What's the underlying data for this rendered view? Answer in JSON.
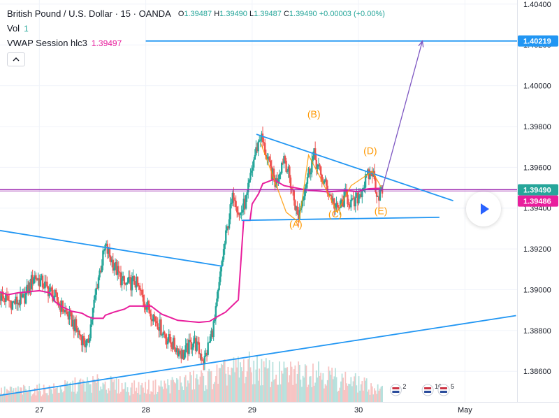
{
  "header": {
    "title": "British Pound / U.S. Dollar · 15 · OANDA",
    "ohlc": [
      {
        "k": "O",
        "v": "1.39487"
      },
      {
        "k": "H",
        "v": "1.39490"
      },
      {
        "k": "L",
        "v": "1.39487"
      },
      {
        "k": "C",
        "v": "1.39490"
      }
    ],
    "change": "+0.00003 (+0.00%)",
    "vol_label": "Vol",
    "vol_value": "1",
    "vwap_label": "VWAP Session hlc3",
    "vwap_value": "1.39497",
    "collapse_icon": "chevron-up-icon"
  },
  "colors": {
    "up": "#26a69a",
    "down": "#ef5350",
    "vwap": "#e91e9c",
    "trendline": "#2196f3",
    "pattern": "#ff9800",
    "pattern_arrow": "#7e57c2",
    "price_line": "#9c27b0",
    "blue_tag": "#2196f3"
  },
  "chart_data": {
    "type": "candlestick",
    "y_axis": {
      "range": [
        1.3845,
        1.4042
      ],
      "ticks": [
        "1.38600",
        "1.38800",
        "1.39000",
        "1.39200",
        "1.39400",
        "1.39600",
        "1.39800",
        "1.40000",
        "1.40200",
        "1.40400"
      ]
    },
    "x_axis": {
      "range": [
        26.63,
        31.49
      ],
      "ticks": [
        {
          "label": "27",
          "day": 27
        },
        {
          "label": "28",
          "day": 28
        },
        {
          "label": "29",
          "day": 29
        },
        {
          "label": "30",
          "day": 30
        },
        {
          "label": "May",
          "day": 31
        }
      ]
    },
    "price_labels": [
      {
        "text": "1.40219",
        "price": 1.40219
      },
      {
        "text": "1.39490",
        "price": 1.3949
      },
      {
        "text": "1.39486",
        "price": 1.39486
      }
    ],
    "target_line": {
      "price": 1.40219,
      "day_from": 28.0,
      "day_to": 31.49
    },
    "current_price_line": 1.3949,
    "price_path": [
      [
        26.63,
        1.3897
      ],
      [
        26.75,
        1.38935
      ],
      [
        26.85,
        1.3895
      ],
      [
        26.95,
        1.3907
      ],
      [
        27.05,
        1.3902
      ],
      [
        27.15,
        1.3896
      ],
      [
        27.3,
        1.3885
      ],
      [
        27.45,
        1.3872
      ],
      [
        27.55,
        1.3905
      ],
      [
        27.62,
        1.3921
      ],
      [
        27.7,
        1.3912
      ],
      [
        27.8,
        1.3902
      ],
      [
        27.9,
        1.3904
      ],
      [
        28.0,
        1.3893
      ],
      [
        28.1,
        1.3885
      ],
      [
        28.2,
        1.3876
      ],
      [
        28.35,
        1.3868
      ],
      [
        28.45,
        1.3875
      ],
      [
        28.55,
        1.3865
      ],
      [
        28.65,
        1.3885
      ],
      [
        28.72,
        1.3915
      ],
      [
        28.78,
        1.3935
      ],
      [
        28.83,
        1.3948
      ],
      [
        28.88,
        1.3936
      ],
      [
        28.95,
        1.3945
      ],
      [
        29.02,
        1.3965
      ],
      [
        29.08,
        1.3976
      ],
      [
        29.15,
        1.3962
      ],
      [
        29.22,
        1.3952
      ],
      [
        29.3,
        1.3966
      ],
      [
        29.38,
        1.3948
      ],
      [
        29.43,
        1.3935
      ],
      [
        29.5,
        1.3952
      ],
      [
        29.58,
        1.3966
      ],
      [
        29.65,
        1.3955
      ],
      [
        29.72,
        1.3948
      ],
      [
        29.8,
        1.39385
      ],
      [
        29.88,
        1.3946
      ],
      [
        29.95,
        1.3941
      ],
      [
        30.02,
        1.3948
      ],
      [
        30.08,
        1.3955
      ],
      [
        30.13,
        1.3958
      ],
      [
        30.18,
        1.3946
      ],
      [
        30.23,
        1.3949
      ]
    ],
    "vwap_path": [
      [
        26.63,
        1.3899
      ],
      [
        26.7,
        1.38975
      ],
      [
        26.8,
        1.38985
      ],
      [
        26.9,
        1.3899
      ],
      [
        27.0,
        1.38995
      ],
      [
        27.1,
        1.38985
      ],
      [
        27.15,
        1.3894
      ],
      [
        27.2,
        1.3892
      ],
      [
        27.3,
        1.38895
      ],
      [
        27.4,
        1.38885
      ],
      [
        27.45,
        1.3887
      ],
      [
        27.5,
        1.3886
      ],
      [
        27.55,
        1.3886
      ],
      [
        27.6,
        1.3886
      ],
      [
        27.62,
        1.38875
      ],
      [
        27.7,
        1.3889
      ],
      [
        27.8,
        1.38905
      ],
      [
        27.85,
        1.3892
      ],
      [
        27.95,
        1.3892
      ],
      [
        28.05,
        1.3892
      ],
      [
        28.1,
        1.389
      ],
      [
        28.15,
        1.3888
      ],
      [
        28.25,
        1.3886
      ],
      [
        28.3,
        1.3885
      ],
      [
        28.4,
        1.38845
      ],
      [
        28.5,
        1.3884
      ],
      [
        28.6,
        1.38845
      ],
      [
        28.68,
        1.3887
      ],
      [
        28.75,
        1.3889
      ],
      [
        28.83,
        1.3893
      ],
      [
        28.87,
        1.3895
      ],
      [
        28.92,
        1.3934
      ],
      [
        28.98,
        1.3934
      ],
      [
        29.0,
        1.3942
      ],
      [
        29.06,
        1.3947
      ],
      [
        29.1,
        1.3952
      ],
      [
        29.2,
        1.3954
      ],
      [
        29.3,
        1.3951
      ],
      [
        29.5,
        1.3949
      ],
      [
        29.7,
        1.3948
      ],
      [
        29.9,
        1.39485
      ],
      [
        30.0,
        1.3948
      ],
      [
        30.04,
        1.3949
      ],
      [
        30.1,
        1.39495
      ],
      [
        30.2,
        1.39497
      ]
    ],
    "volume_path": [
      [
        26.63,
        0.18
      ],
      [
        26.9,
        0.2
      ],
      [
        27.15,
        0.22
      ],
      [
        27.4,
        0.3
      ],
      [
        27.6,
        0.32
      ],
      [
        27.85,
        0.24
      ],
      [
        28.1,
        0.26
      ],
      [
        28.35,
        0.34
      ],
      [
        28.6,
        0.4
      ],
      [
        28.78,
        0.52
      ],
      [
        29.0,
        0.58
      ],
      [
        29.25,
        0.46
      ],
      [
        29.45,
        0.5
      ],
      [
        29.6,
        0.56
      ],
      [
        29.8,
        0.38
      ],
      [
        29.95,
        0.34
      ],
      [
        30.1,
        0.26
      ],
      [
        30.23,
        0.18
      ]
    ],
    "trendlines": [
      {
        "from": [
          26.63,
          1.3929
        ],
        "to": [
          28.72,
          1.39115
        ]
      },
      {
        "from": [
          26.63,
          1.38482
        ],
        "to": [
          31.48,
          1.38873
        ]
      },
      {
        "from": [
          29.04,
          1.39762
        ],
        "to": [
          30.89,
          1.39436
        ]
      },
      {
        "from": [
          28.9,
          1.3934
        ],
        "to": [
          30.76,
          1.39355
        ]
      }
    ],
    "pattern_path": [
      [
        29.08,
        1.3972
      ],
      [
        29.32,
        1.3938
      ],
      [
        29.44,
        1.3933
      ],
      [
        29.53,
        1.3966
      ],
      [
        29.63,
        1.3956
      ],
      [
        29.8,
        1.3938
      ],
      [
        29.93,
        1.3951
      ],
      [
        30.13,
        1.3958
      ],
      [
        30.21,
        1.39505
      ]
    ],
    "pattern_arrow": {
      "from": [
        30.22,
        1.3949
      ],
      "to": [
        30.6,
        1.40219
      ]
    },
    "wave_labels": [
      {
        "text": "(A)",
        "day": 29.41,
        "price": 1.39305
      },
      {
        "text": "(B)",
        "day": 29.58,
        "price": 1.39845
      },
      {
        "text": "(C)",
        "day": 29.78,
        "price": 1.39355
      },
      {
        "text": "(D)",
        "day": 30.11,
        "price": 1.39665
      },
      {
        "text": "(E)",
        "day": 30.21,
        "price": 1.3937
      }
    ],
    "events": [
      {
        "text": "2",
        "day": 30.35
      },
      {
        "text": "10",
        "day": 30.65
      },
      {
        "text": "5",
        "day": 30.8
      }
    ]
  }
}
